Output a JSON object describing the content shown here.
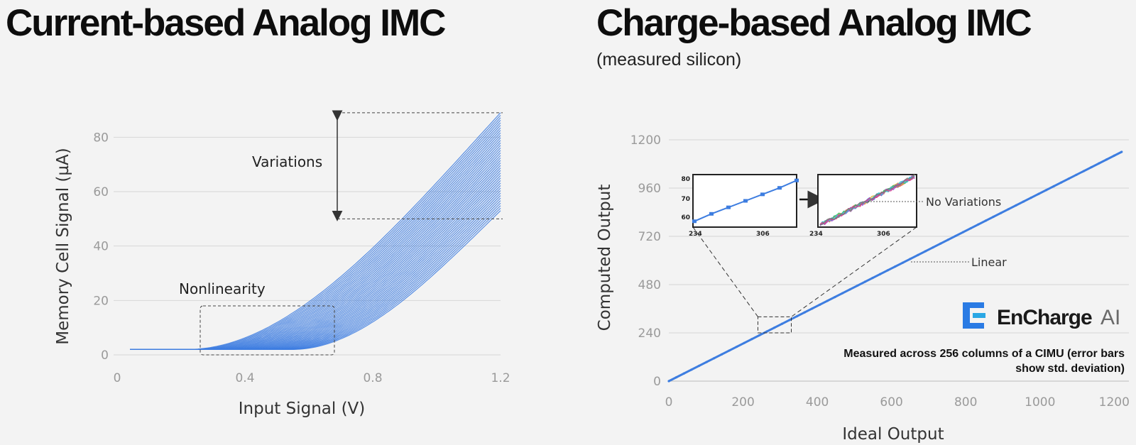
{
  "left": {
    "title": "Current-based Analog IMC",
    "annotations": {
      "variations": "Variations",
      "nonlinearity": "Nonlinearity"
    }
  },
  "right": {
    "title": "Charge-based Analog IMC",
    "subtitle": "(measured silicon)",
    "annotations": {
      "no_variations": "No Variations",
      "linear": "Linear"
    },
    "note_line1": "Measured across 256 columns of a CIMU (error bars",
    "note_line2": "show std. deviation)",
    "logo": {
      "name": "EnCharge",
      "suffix": "AI"
    }
  },
  "colors": {
    "curve": "#3d7de0",
    "grid": "#d6d6d6",
    "accent": "#2a7be4"
  },
  "chart_data": [
    {
      "type": "line",
      "title": "Current-based Analog IMC",
      "xlabel": "Input Signal (V)",
      "ylabel": "Memory Cell Signal (µA)",
      "xlim": [
        0,
        1.2
      ],
      "ylim": [
        0,
        90
      ],
      "xticks": [
        "0",
        "0.4",
        "0.8",
        "1.2"
      ],
      "xtick_values": [
        0,
        0.4,
        0.8,
        1.2
      ],
      "yticks": [
        "0",
        "20",
        "40",
        "60",
        "80"
      ],
      "ytick_values": [
        0,
        20,
        40,
        60,
        80
      ],
      "series_family": {
        "count": 40,
        "x_start": 0.04,
        "x_end": 1.2,
        "baseline": 2,
        "threshold_min": 0.22,
        "threshold_max": 0.55,
        "end_value_min": 53,
        "end_value_max": 89
      },
      "variations_range": [
        50,
        89
      ],
      "nonlinearity_box": {
        "x": [
          0.26,
          0.68
        ],
        "y": [
          0,
          18
        ]
      }
    },
    {
      "type": "line",
      "title": "Charge-based Analog IMC",
      "xlabel": "Ideal Output",
      "ylabel": "Computed Output",
      "xlim": [
        0,
        1230
      ],
      "ylim": [
        0,
        1260
      ],
      "xticks": [
        "0",
        "200",
        "400",
        "600",
        "800",
        "1000",
        "1200"
      ],
      "xtick_values": [
        0,
        200,
        400,
        600,
        800,
        1000,
        1200
      ],
      "yticks": [
        "0",
        "240",
        "480",
        "720",
        "960",
        "1200"
      ],
      "ytick_values": [
        0,
        240,
        480,
        720,
        960,
        1200
      ],
      "series": [
        {
          "name": "Computed",
          "x": [
            0,
            1220
          ],
          "y": [
            0,
            1140
          ]
        }
      ],
      "zoom_box": {
        "x": [
          240,
          330
        ],
        "y": [
          240,
          320
        ]
      },
      "insets": [
        {
          "name": "error-bars",
          "xticks": [
            "234",
            "306"
          ],
          "yticks": [
            "80",
            "70",
            "60"
          ],
          "points": [
            [
              234,
              58
            ],
            [
              252,
              62
            ],
            [
              270,
              65.5
            ],
            [
              288,
              69
            ],
            [
              306,
              72.5
            ],
            [
              324,
              76
            ],
            [
              342,
              80
            ]
          ]
        },
        {
          "name": "all-columns",
          "xticks": [
            "234",
            "306"
          ],
          "yticks": []
        }
      ]
    }
  ]
}
